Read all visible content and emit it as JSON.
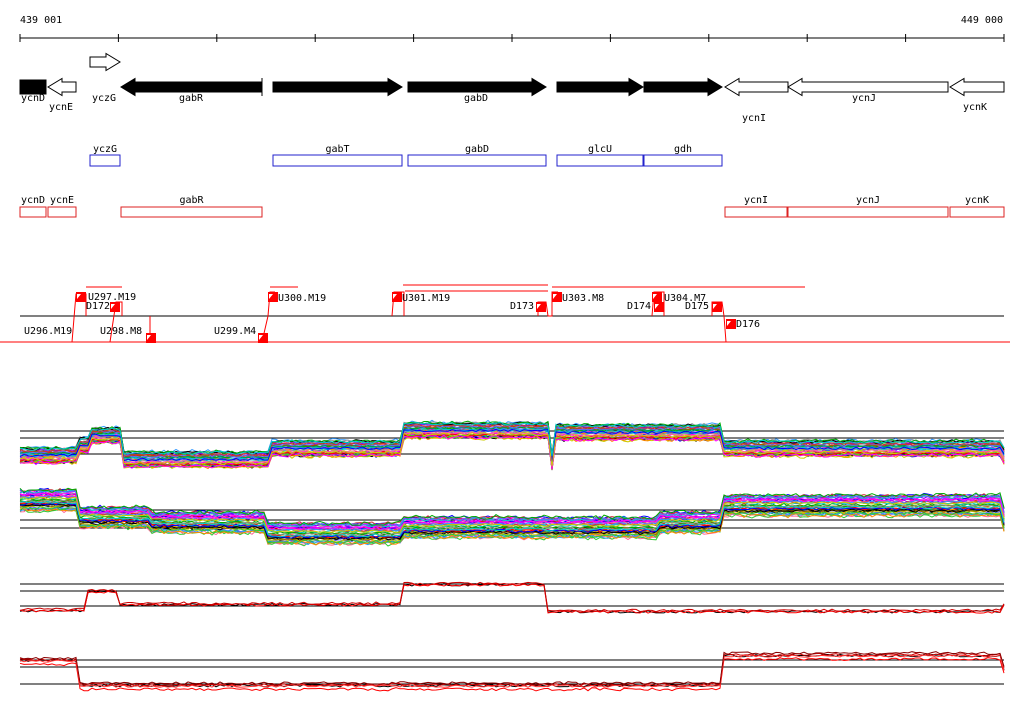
{
  "ruler": {
    "start_label": "439 001",
    "end_label": "449 000"
  },
  "colors": {
    "gene_fill": "#000000",
    "gene_outline": "#000000",
    "up_box": "#2222cc",
    "down_box": "#dd2222",
    "tiling": "#ff0000",
    "axis": "#000000"
  },
  "genes": [
    {
      "name": "ycnD",
      "strand": "-",
      "fill": "black"
    },
    {
      "name": "ycnE",
      "strand": "-",
      "fill": "white"
    },
    {
      "name": "yczG",
      "strand": "+",
      "fill": "white"
    },
    {
      "name": "gabR",
      "strand": "-",
      "fill": "black"
    },
    {
      "name": "gabT",
      "strand": "+",
      "fill": "black"
    },
    {
      "name": "gabD",
      "strand": "+",
      "fill": "black"
    },
    {
      "name": "glcU",
      "strand": "+",
      "fill": "black"
    },
    {
      "name": "gdh",
      "strand": "+",
      "fill": "black"
    },
    {
      "name": "ycnI",
      "strand": "-",
      "fill": "white"
    },
    {
      "name": "ycnJ",
      "strand": "-",
      "fill": "white"
    },
    {
      "name": "ycnK",
      "strand": "-",
      "fill": "white"
    }
  ],
  "up_regulated": [
    "yczG",
    "gabT",
    "gabD",
    "glcU",
    "gdh"
  ],
  "down_regulated": [
    "ycnD",
    "ycnE",
    "gabR",
    "ycnI",
    "ycnJ",
    "ycnK"
  ],
  "segments_top": [
    "U297.M19",
    "D172",
    "U300.M19",
    "U301.M19",
    "D173",
    "U303.M8",
    "D174",
    "U304.M7",
    "D175"
  ],
  "segments_bottom": [
    "U296.M19",
    "U298.M8",
    "U299.M4",
    "D176"
  ],
  "profile_panels": 4
}
